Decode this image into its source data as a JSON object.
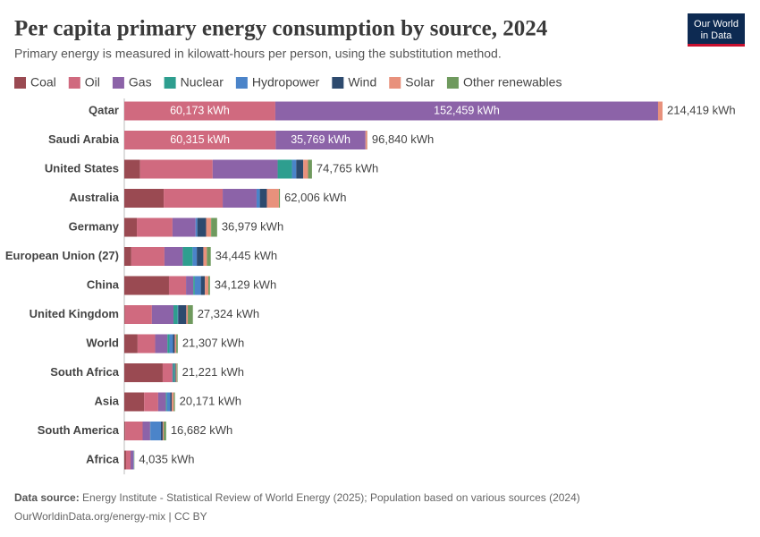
{
  "chart_data": {
    "type": "stacked-bar-horizontal",
    "title": "Per capita primary energy consumption by source, 2024",
    "subtitle": "Primary energy is measured in kilowatt-hours per person, using the substitution method.",
    "logo": [
      "Our World",
      "in Data"
    ],
    "categories": [
      "Qatar",
      "Saudi Arabia",
      "United States",
      "Australia",
      "Germany",
      "European Union (27)",
      "China",
      "United Kingdom",
      "World",
      "South Africa",
      "Asia",
      "South America",
      "Africa"
    ],
    "series": [
      {
        "name": "Coal",
        "color": "#9a4a52",
        "values": [
          0,
          0,
          6300,
          15700,
          5000,
          2800,
          17800,
          300,
          5300,
          15300,
          7900,
          400,
          700
        ]
      },
      {
        "name": "Oil",
        "color": "#d06a7f",
        "values": [
          60173,
          60315,
          28900,
          23500,
          14200,
          13200,
          6800,
          10700,
          7000,
          3800,
          5600,
          6900,
          1800
        ],
        "value_labels": [
          "60,173 kWh",
          "60,315 kWh",
          null,
          null,
          null,
          null,
          null,
          null,
          null,
          null,
          null,
          null,
          null
        ]
      },
      {
        "name": "Gas",
        "color": "#8c63a8",
        "values": [
          152459,
          35769,
          25900,
          13500,
          9200,
          7300,
          2900,
          8600,
          4900,
          300,
          3100,
          3000,
          1100
        ],
        "value_labels": [
          "152,459 kWh",
          "35,769 kWh",
          null,
          null,
          null,
          null,
          null,
          null,
          null,
          null,
          null,
          null,
          null
        ]
      },
      {
        "name": "Nuclear",
        "color": "#2e9e8f",
        "values": [
          0,
          0,
          5700,
          0,
          0,
          3900,
          600,
          1700,
          800,
          700,
          400,
          100,
          30
        ]
      },
      {
        "name": "Hydropower",
        "color": "#4b84c9",
        "values": [
          0,
          0,
          1700,
          1300,
          700,
          1700,
          2400,
          200,
          1400,
          100,
          1300,
          4200,
          200
        ]
      },
      {
        "name": "Wind",
        "color": "#2d4a6e",
        "values": [
          0,
          0,
          2800,
          2800,
          3500,
          2600,
          1600,
          3200,
          700,
          300,
          600,
          700,
          50
        ]
      },
      {
        "name": "Solar",
        "color": "#e8917c",
        "values": [
          1787,
          700,
          1900,
          4800,
          2000,
          1400,
          1400,
          600,
          600,
          400,
          800,
          400,
          70
        ]
      },
      {
        "name": "Other renewables",
        "color": "#6f9a5e",
        "values": [
          0,
          56,
          1565,
          406,
          2379,
          1545,
          629,
          2024,
          607,
          321,
          471,
          982,
          85
        ]
      }
    ],
    "totals": [
      214419,
      96840,
      74765,
      62006,
      36979,
      34445,
      34129,
      27324,
      21307,
      21221,
      20171,
      16682,
      4035
    ],
    "total_labels": [
      "214,419 kWh",
      "96,840 kWh",
      "74,765 kWh",
      "62,006 kWh",
      "36,979 kWh",
      "34,445 kWh",
      "34,129 kWh",
      "27,324 kWh",
      "21,307 kWh",
      "21,221 kWh",
      "20,171 kWh",
      "16,682 kWh",
      "4,035 kWh"
    ],
    "source_label": "Data source:",
    "source": "Energy Institute - Statistical Review of World Energy (2025); Population based on various sources (2024)",
    "footer_link": "OurWorldinData.org/energy-mix | CC BY"
  }
}
